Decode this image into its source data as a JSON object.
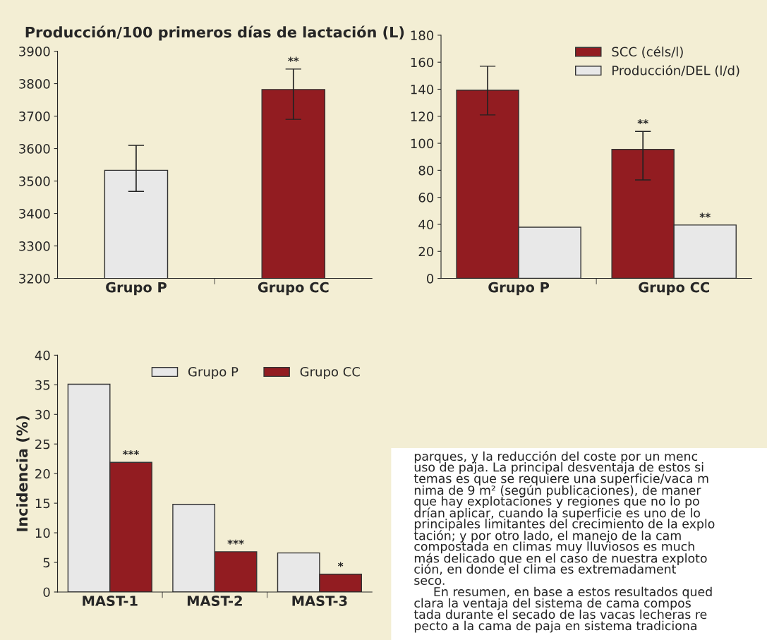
{
  "chart_data": [
    {
      "type": "bar",
      "title": "Producción/100 primeros días de lactación (L)",
      "categories": [
        "Grupo P",
        "Grupo CC"
      ],
      "values": [
        3533,
        3782
      ],
      "colors": [
        "#e8e8e8",
        "#921c21"
      ],
      "errors": [
        [
          3468,
          3610
        ],
        [
          3690,
          3845
        ]
      ],
      "ylim": [
        3200,
        3900
      ],
      "yticks": [
        3200,
        3300,
        3400,
        3500,
        3600,
        3700,
        3800,
        3900
      ],
      "annotations": [
        {
          "text": "**",
          "x": "Grupo CC",
          "y": 3845
        }
      ],
      "grid": false,
      "legend": false
    },
    {
      "type": "bar",
      "categories": [
        "Grupo P",
        "Grupo CC"
      ],
      "series": [
        {
          "name": "SCC (céls/l)",
          "color": "#921c21",
          "values": [
            139.3,
            95.5
          ],
          "errors": [
            [
              121,
              157
            ],
            [
              72.9,
              108.8
            ]
          ],
          "value_labels": [
            null,
            "**"
          ]
        },
        {
          "name": "Producción/DEL (l/d)",
          "color": "#e8e8e8",
          "values": [
            37.9,
            39.5
          ],
          "value_labels": [
            null,
            "**"
          ]
        }
      ],
      "ylim": [
        0,
        180
      ],
      "yticks": [
        0,
        20,
        40,
        60,
        80,
        100,
        120,
        140,
        160,
        180
      ],
      "grid": false,
      "legend": "top right"
    },
    {
      "type": "bar",
      "ylabel": "Incidencia (%)",
      "categories": [
        "MAST-1",
        "MAST-2",
        "MAST-3"
      ],
      "series": [
        {
          "name": "Grupo P",
          "color": "#e8e8e8",
          "values": [
            35.1,
            14.8,
            6.6
          ]
        },
        {
          "name": "Grupo CC",
          "color": "#921c21",
          "values": [
            21.9,
            6.8,
            3.0
          ]
        }
      ],
      "ylim": [
        0,
        40
      ],
      "yticks": [
        0,
        5,
        10,
        15,
        20,
        25,
        30,
        35,
        40
      ],
      "annotations": [
        {
          "text": "***",
          "x": "MAST-1",
          "y": 21.9
        },
        {
          "text": "***",
          "x": "MAST-2",
          "y": 6.8
        },
        {
          "text": "*",
          "x": "MAST-3",
          "y": 3.0
        }
      ],
      "grid": false,
      "legend": "top right"
    },
    {
      "type": "other",
      "annotations": [
        "parques, y la reducción del coste por un menc",
        "uso de paja. La principal desventaja de estos si",
        "temas es que se requiere una superficie/vaca m",
        "nima de 9 m² (según publicaciones), de maner",
        "que hay explotaciones y regiones que no lo po",
        "drían aplicar, cuando la superficie es uno de lo",
        "principales limitantes del crecimiento de la explo",
        "tación; y por otro lado, el manejo de la cam",
        "compostada en climas muy lluviosos es much",
        "más delicado que en el caso de nuestra exploto",
        "ción, en donde el clima es extremadament",
        "seco.",
        "     En resumen, en base a estos resultados qued",
        "clara la ventaja del sistema de cama compos",
        "tada durante el secado de las vacas lecheras re",
        "pecto a la cama de paja en sistema tradiciona"
      ]
    }
  ]
}
